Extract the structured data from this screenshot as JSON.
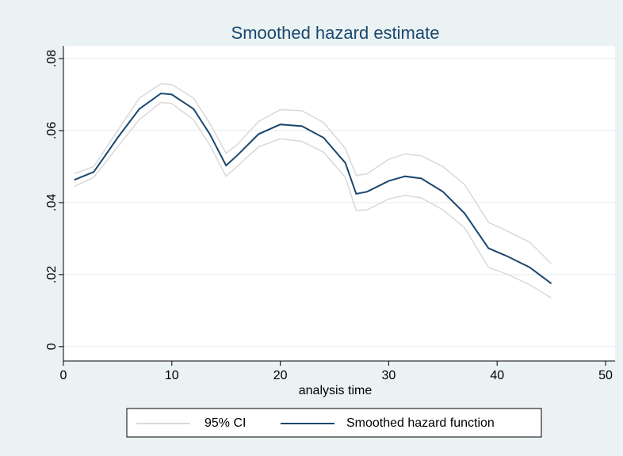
{
  "chart_data": {
    "type": "line",
    "title": "Smoothed hazard estimate",
    "x_label": "analysis time",
    "x": [
      1,
      2.8,
      5,
      7,
      9,
      10,
      12,
      13.5,
      15,
      16,
      18,
      20,
      22,
      24,
      26,
      27,
      28,
      30,
      31.5,
      33,
      35,
      37,
      39.2,
      41,
      43,
      45
    ],
    "series": [
      {
        "name": "95% CI",
        "color": "#d9d9d9",
        "values": [
          0.048,
          0.05,
          0.06,
          0.069,
          0.073,
          0.0728,
          0.069,
          0.062,
          0.0537,
          0.056,
          0.0625,
          0.0658,
          0.0655,
          0.0622,
          0.055,
          0.0475,
          0.048,
          0.052,
          0.0535,
          0.053,
          0.05,
          0.045,
          0.0345,
          0.032,
          0.029,
          0.023
        ],
        "lower": [
          0.0445,
          0.047,
          0.0555,
          0.063,
          0.0678,
          0.0675,
          0.063,
          0.056,
          0.0473,
          0.05,
          0.0555,
          0.0577,
          0.057,
          0.054,
          0.047,
          0.0378,
          0.038,
          0.041,
          0.042,
          0.0413,
          0.038,
          0.033,
          0.022,
          0.02,
          0.0172,
          0.0135
        ]
      },
      {
        "name": "Smoothed hazard function",
        "color": "#1a476f",
        "values": [
          0.0463,
          0.0485,
          0.058,
          0.066,
          0.0703,
          0.07,
          0.066,
          0.059,
          0.0503,
          0.053,
          0.059,
          0.0617,
          0.0612,
          0.058,
          0.051,
          0.0424,
          0.043,
          0.046,
          0.0473,
          0.0467,
          0.043,
          0.037,
          0.0273,
          0.025,
          0.022,
          0.0175
        ]
      }
    ],
    "xlim": [
      0,
      51
    ],
    "xticks": [
      0,
      10,
      20,
      30,
      40,
      50
    ],
    "ylim": [
      -0.004,
      0.0835
    ],
    "yticks": [
      0,
      {
        "value": 0.02,
        "label": ".02"
      },
      {
        "value": 0.04,
        "label": ".04"
      },
      {
        "value": 0.06,
        "label": ".06"
      },
      {
        "value": 0.08,
        "label": ".08"
      }
    ],
    "grid": true
  }
}
